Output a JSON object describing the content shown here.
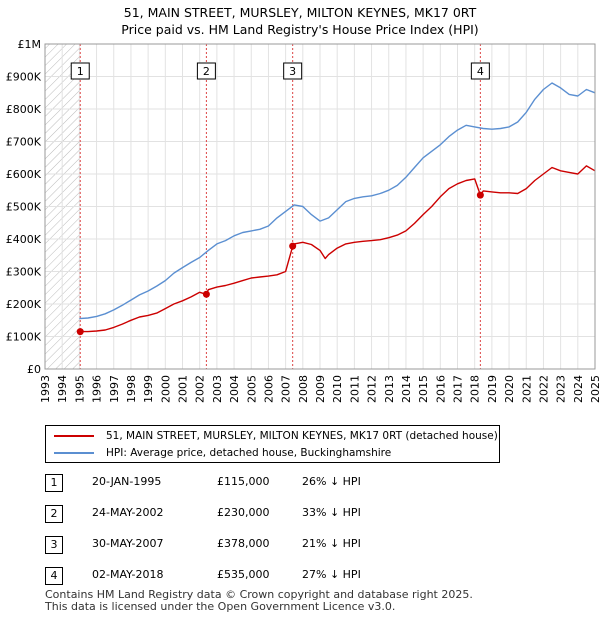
{
  "title_line1": "51, MAIN STREET, MURSLEY, MILTON KEYNES, MK17 0RT",
  "title_line2": "Price paid vs. HM Land Registry's House Price Index (HPI)",
  "chart_data": {
    "type": "line",
    "y_tick_labels": [
      "£0",
      "£100K",
      "£200K",
      "£300K",
      "£400K",
      "£500K",
      "£600K",
      "£700K",
      "£800K",
      "£900K",
      "£1M"
    ],
    "ylim": [
      0,
      1000000
    ],
    "xlim": [
      1993,
      2025
    ],
    "x_tick_labels": [
      "1993",
      "1994",
      "1995",
      "1996",
      "1997",
      "1998",
      "1999",
      "2000",
      "2001",
      "2002",
      "2003",
      "2004",
      "2005",
      "2006",
      "2007",
      "2008",
      "2009",
      "2010",
      "2011",
      "2012",
      "2013",
      "2014",
      "2015",
      "2016",
      "2017",
      "2018",
      "2019",
      "2020",
      "2021",
      "2022",
      "2023",
      "2024",
      "2025"
    ],
    "grid": true,
    "colors": {
      "property": "#cc0000",
      "hpi": "#5b8fd1",
      "marker_line": "#dd4444",
      "hatch": "#bbbbbb"
    },
    "series": [
      {
        "name": "51, MAIN STREET, MURSLEY, MILTON KEYNES, MK17 0RT (detached house)",
        "x": [
          1995.05,
          1995.5,
          1996.0,
          1996.5,
          1997.0,
          1997.5,
          1998.0,
          1998.5,
          1999.0,
          1999.5,
          2000.0,
          2000.5,
          2001.0,
          2001.5,
          2002.0,
          2002.39,
          2002.5,
          2003.0,
          2003.5,
          2004.0,
          2004.5,
          2005.0,
          2005.5,
          2006.0,
          2006.5,
          2007.0,
          2007.41,
          2007.5,
          2008.0,
          2008.5,
          2009.0,
          2009.3,
          2009.5,
          2010.0,
          2010.5,
          2011.0,
          2011.5,
          2012.0,
          2012.5,
          2013.0,
          2013.5,
          2014.0,
          2014.5,
          2015.0,
          2015.5,
          2016.0,
          2016.5,
          2017.0,
          2017.5,
          2018.0,
          2018.33,
          2018.5,
          2019.0,
          2019.5,
          2020.0,
          2020.5,
          2021.0,
          2021.5,
          2022.0,
          2022.5,
          2023.0,
          2023.5,
          2024.0,
          2024.5,
          2025.0
        ],
        "values": [
          115000,
          115000,
          117000,
          120000,
          128000,
          138000,
          150000,
          160000,
          165000,
          172000,
          186000,
          200000,
          210000,
          222000,
          236000,
          230000,
          244000,
          252000,
          257000,
          264000,
          272000,
          280000,
          283000,
          286000,
          290000,
          300000,
          378000,
          385000,
          390000,
          383000,
          365000,
          340000,
          352000,
          372000,
          385000,
          390000,
          393000,
          395000,
          398000,
          404000,
          412000,
          425000,
          448000,
          475000,
          500000,
          530000,
          555000,
          570000,
          580000,
          585000,
          535000,
          548000,
          545000,
          542000,
          542000,
          540000,
          555000,
          580000,
          600000,
          620000,
          610000,
          605000,
          600000,
          625000,
          610000
        ]
      },
      {
        "name": "HPI: Average price, detached house, Buckinghamshire",
        "x": [
          1995.0,
          1995.5,
          1996.0,
          1996.5,
          1997.0,
          1997.5,
          1998.0,
          1998.5,
          1999.0,
          1999.5,
          2000.0,
          2000.5,
          2001.0,
          2001.5,
          2002.0,
          2002.5,
          2003.0,
          2003.5,
          2004.0,
          2004.5,
          2005.0,
          2005.5,
          2006.0,
          2006.5,
          2007.0,
          2007.5,
          2008.0,
          2008.5,
          2009.0,
          2009.5,
          2010.0,
          2010.5,
          2011.0,
          2011.5,
          2012.0,
          2012.5,
          2013.0,
          2013.5,
          2014.0,
          2014.5,
          2015.0,
          2015.5,
          2016.0,
          2016.5,
          2017.0,
          2017.5,
          2018.0,
          2018.5,
          2019.0,
          2019.5,
          2020.0,
          2020.5,
          2021.0,
          2021.5,
          2022.0,
          2022.5,
          2023.0,
          2023.5,
          2024.0,
          2024.5,
          2025.0
        ],
        "values": [
          155000,
          157000,
          162000,
          170000,
          182000,
          196000,
          212000,
          228000,
          240000,
          255000,
          272000,
          295000,
          312000,
          328000,
          343000,
          365000,
          385000,
          395000,
          410000,
          420000,
          425000,
          430000,
          440000,
          465000,
          485000,
          505000,
          500000,
          475000,
          455000,
          465000,
          490000,
          515000,
          525000,
          530000,
          533000,
          540000,
          550000,
          565000,
          590000,
          620000,
          650000,
          670000,
          690000,
          715000,
          735000,
          750000,
          745000,
          740000,
          738000,
          740000,
          745000,
          760000,
          790000,
          830000,
          860000,
          880000,
          865000,
          845000,
          840000,
          860000,
          850000
        ]
      }
    ],
    "sales": [
      {
        "label": "1",
        "x": 1995.05,
        "value": 115000
      },
      {
        "label": "2",
        "x": 2002.39,
        "value": 230000
      },
      {
        "label": "3",
        "x": 2007.41,
        "value": 378000
      },
      {
        "label": "4",
        "x": 2018.33,
        "value": 535000
      }
    ]
  },
  "legend": {
    "property_label": "51, MAIN STREET, MURSLEY, MILTON KEYNES, MK17 0RT (detached house)",
    "hpi_label": "HPI: Average price, detached house, Buckinghamshire"
  },
  "transactions": [
    {
      "num": "1",
      "date": "20-JAN-1995",
      "price": "£115,000",
      "hpi": "26% ↓ HPI"
    },
    {
      "num": "2",
      "date": "24-MAY-2002",
      "price": "£230,000",
      "hpi": "33% ↓ HPI"
    },
    {
      "num": "3",
      "date": "30-MAY-2007",
      "price": "£378,000",
      "hpi": "21% ↓ HPI"
    },
    {
      "num": "4",
      "date": "02-MAY-2018",
      "price": "£535,000",
      "hpi": "27% ↓ HPI"
    }
  ],
  "footer_line1": "Contains HM Land Registry data © Crown copyright and database right 2025.",
  "footer_line2": "This data is licensed under the Open Government Licence v3.0."
}
